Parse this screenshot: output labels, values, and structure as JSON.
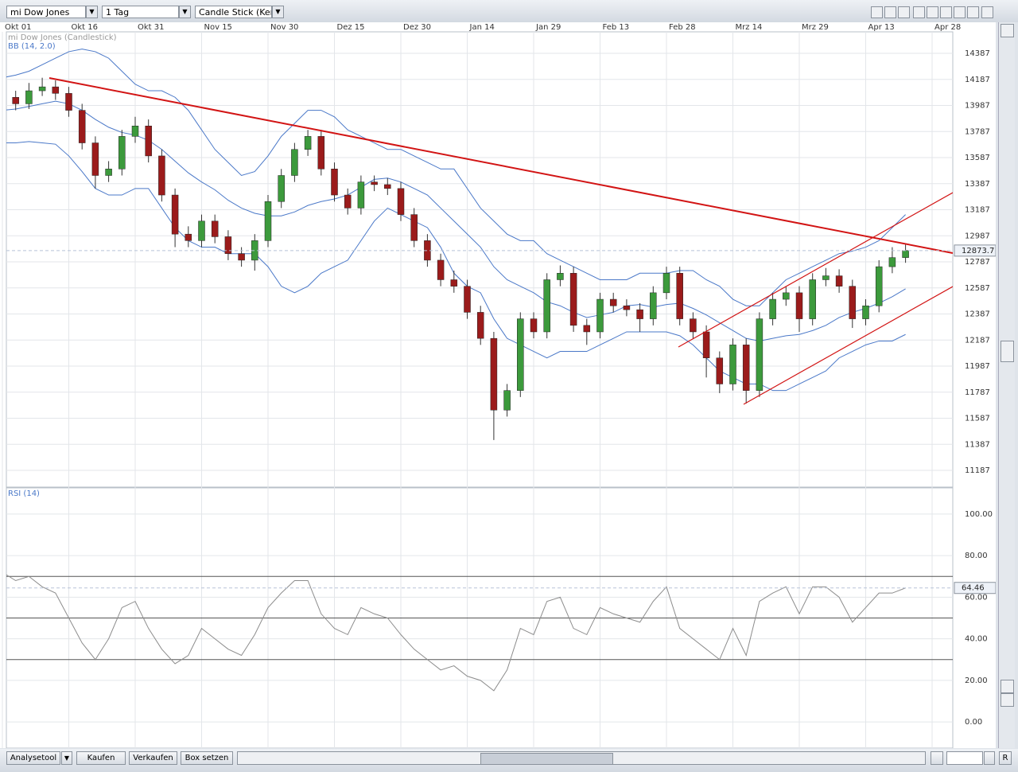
{
  "toolbar": {
    "symbol": "mi Dow Jones",
    "period": "1 Tag",
    "chart_style": "Candle Stick (Kerze"
  },
  "bottom_bar": {
    "buttons": [
      "Analysetool",
      "Kaufen",
      "Verkaufen",
      "Box setzen"
    ],
    "reset": "R"
  },
  "chart_data": [
    {
      "type": "candlestick",
      "title": "mi Dow Jones (Candlestick)",
      "categories": [
        "Okt 01",
        null,
        null,
        null,
        null,
        "Okt 16",
        null,
        null,
        null,
        null,
        "Okt 31",
        null,
        null,
        null,
        null,
        "Nov 15",
        null,
        null,
        null,
        null,
        "Nov 30",
        null,
        null,
        null,
        null,
        "Dez 15",
        null,
        null,
        null,
        null,
        "Dez 30",
        null,
        null,
        null,
        null,
        "Jan 14",
        null,
        null,
        null,
        null,
        "Jan 29",
        null,
        null,
        null,
        null,
        "Feb 13",
        null,
        null,
        null,
        null,
        "Feb 28",
        null,
        null,
        null,
        null,
        "Mrz 14",
        null,
        null,
        null,
        null,
        "Mrz 29",
        null,
        null,
        null,
        null,
        "Apr 13",
        null,
        null,
        null,
        null,
        "Apr 28"
      ],
      "open": [
        14100,
        14050,
        14000,
        14100,
        14130,
        14080,
        13950,
        13700,
        13450,
        13500,
        13750,
        13830,
        13600,
        13300,
        13000,
        12950,
        13100,
        12980,
        12850,
        12800,
        12950,
        13250,
        13450,
        13650,
        13750,
        13500,
        13300,
        13200,
        13400,
        13380,
        13350,
        13150,
        12950,
        12800,
        12650,
        12600,
        12400,
        12200,
        11650,
        11800,
        12350,
        12250,
        12650,
        12700,
        12300,
        12250,
        12500,
        12450,
        12420,
        12350,
        12550,
        12700,
        12350,
        12250,
        12050,
        11850,
        12150,
        11800,
        12350,
        12500,
        12550,
        12350,
        12650,
        12680,
        12600,
        12350,
        12450,
        12750,
        12820,
        null,
        null
      ],
      "high": [
        14150,
        14100,
        14160,
        14200,
        14180,
        14130,
        14000,
        13750,
        13560,
        13800,
        13900,
        13880,
        13650,
        13350,
        13060,
        13150,
        13150,
        13030,
        12900,
        13000,
        13300,
        13500,
        13700,
        13800,
        13800,
        13550,
        13350,
        13450,
        13450,
        13430,
        13400,
        13200,
        13000,
        12850,
        12720,
        12650,
        12450,
        12250,
        11850,
        12400,
        12400,
        12700,
        12760,
        12750,
        12350,
        12550,
        12550,
        12500,
        12470,
        12600,
        12750,
        12750,
        12400,
        12300,
        12100,
        12200,
        12200,
        12400,
        12550,
        12600,
        12600,
        12700,
        12740,
        12730,
        12650,
        12500,
        12800,
        12900,
        12920,
        null,
        null
      ],
      "low": [
        14000,
        13950,
        13960,
        14060,
        14030,
        13900,
        13650,
        13350,
        13400,
        13450,
        13700,
        13550,
        13250,
        12900,
        12900,
        12900,
        12930,
        12800,
        12750,
        12720,
        12900,
        13200,
        13400,
        13600,
        13450,
        13250,
        13150,
        13150,
        13330,
        13300,
        13100,
        12900,
        12750,
        12600,
        12550,
        12350,
        12150,
        11420,
        11600,
        11750,
        12200,
        12200,
        12600,
        12250,
        12150,
        12200,
        12400,
        12370,
        12250,
        12300,
        12500,
        12300,
        12200,
        11900,
        11780,
        11800,
        11700,
        11750,
        12300,
        12450,
        12250,
        12300,
        12600,
        12550,
        12280,
        12300,
        12400,
        12700,
        12780,
        null,
        null
      ],
      "close": [
        14050,
        14000,
        14100,
        14130,
        14080,
        13950,
        13700,
        13450,
        13500,
        13750,
        13830,
        13600,
        13300,
        13000,
        12950,
        13100,
        12980,
        12850,
        12800,
        12950,
        13250,
        13450,
        13650,
        13750,
        13500,
        13300,
        13200,
        13400,
        13380,
        13350,
        13150,
        12950,
        12800,
        12650,
        12600,
        12400,
        12200,
        11650,
        11800,
        12350,
        12250,
        12650,
        12700,
        12300,
        12250,
        12500,
        12450,
        12420,
        12350,
        12550,
        12700,
        12350,
        12250,
        12050,
        11850,
        12150,
        11800,
        12350,
        12500,
        12550,
        12350,
        12650,
        12680,
        12600,
        12350,
        12450,
        12750,
        12820,
        12874,
        null,
        null
      ],
      "up_color": "#3c9a3c",
      "down_color": "#9b1b1b",
      "bollinger": {
        "name": "BB (14, 2.0)",
        "color": "#4a78c8",
        "upper": [
          14200,
          14220,
          14250,
          14300,
          14350,
          14400,
          14420,
          14400,
          14350,
          14250,
          14150,
          14100,
          14100,
          14050,
          13950,
          13800,
          13650,
          13550,
          13450,
          13480,
          13600,
          13750,
          13850,
          13950,
          13950,
          13900,
          13800,
          13750,
          13700,
          13650,
          13650,
          13600,
          13550,
          13500,
          13500,
          13350,
          13200,
          13100,
          13000,
          12950,
          12950,
          12850,
          12800,
          12750,
          12700,
          12650,
          12650,
          12650,
          12700,
          12700,
          12700,
          12720,
          12720,
          12650,
          12600,
          12500,
          12450,
          12450,
          12550,
          12650,
          12700,
          12750,
          12800,
          12850,
          12870,
          12900,
          12950,
          13050,
          13150,
          null,
          null
        ],
        "middle": [
          13950,
          13960,
          13980,
          14000,
          14020,
          14000,
          13950,
          13880,
          13820,
          13780,
          13760,
          13720,
          13650,
          13560,
          13470,
          13400,
          13340,
          13260,
          13200,
          13160,
          13140,
          13140,
          13170,
          13220,
          13250,
          13270,
          13300,
          13360,
          13420,
          13430,
          13400,
          13350,
          13300,
          13200,
          13100,
          13000,
          12900,
          12750,
          12650,
          12600,
          12550,
          12480,
          12450,
          12400,
          12360,
          12380,
          12400,
          12450,
          12460,
          12440,
          12460,
          12470,
          12430,
          12380,
          12320,
          12260,
          12200,
          12180,
          12200,
          12220,
          12230,
          12260,
          12300,
          12360,
          12400,
          12430,
          12470,
          12520,
          12580,
          null,
          null
        ],
        "lower": [
          13700,
          13700,
          13710,
          13700,
          13690,
          13600,
          13480,
          13350,
          13300,
          13300,
          13350,
          13350,
          13200,
          13050,
          12950,
          12900,
          12900,
          12850,
          12850,
          12850,
          12750,
          12600,
          12550,
          12600,
          12700,
          12750,
          12800,
          12950,
          13100,
          13200,
          13150,
          13100,
          13050,
          12900,
          12700,
          12600,
          12550,
          12350,
          12200,
          12150,
          12100,
          12050,
          12100,
          12100,
          12100,
          12150,
          12200,
          12250,
          12250,
          12250,
          12250,
          12220,
          12150,
          12050,
          11950,
          11900,
          11850,
          11850,
          11800,
          11800,
          11850,
          11900,
          11950,
          12050,
          12100,
          12150,
          12180,
          12180,
          12230,
          null,
          null
        ]
      },
      "ylim": [
        11059,
        14540
      ],
      "yticks": [
        11187,
        11387,
        11587,
        11787,
        11987,
        12187,
        12387,
        12587,
        12787,
        12987,
        13187,
        13387,
        13587,
        13787,
        13987,
        14187,
        14387
      ],
      "last_value": 12873.7,
      "grid": true
    },
    {
      "type": "line",
      "title": "RSI (14)",
      "color": "#8c8c8c",
      "values": [
        72,
        68,
        70,
        65,
        62,
        50,
        38,
        30,
        40,
        55,
        58,
        45,
        35,
        28,
        32,
        45,
        40,
        35,
        32,
        42,
        55,
        62,
        68,
        68,
        52,
        45,
        42,
        55,
        52,
        50,
        42,
        35,
        30,
        25,
        27,
        22,
        20,
        15,
        25,
        45,
        42,
        58,
        60,
        45,
        42,
        55,
        52,
        50,
        48,
        58,
        65,
        45,
        40,
        35,
        30,
        45,
        32,
        58,
        62,
        65,
        52,
        65,
        65,
        60,
        48,
        55,
        62,
        62,
        64.46,
        null,
        null
      ],
      "ylim": [
        -12.6,
        112.6
      ],
      "yticks": [
        {
          "value": 0,
          "label": "0.00"
        },
        {
          "value": 20,
          "label": "20.00"
        },
        {
          "value": 40,
          "label": "40.00"
        },
        {
          "value": 60,
          "label": "60.00"
        },
        {
          "value": 80,
          "label": "80.00"
        },
        {
          "value": 100,
          "label": "100.00"
        }
      ],
      "levels": [
        30,
        50,
        70
      ],
      "last_value": 64.46,
      "grid": true
    }
  ]
}
